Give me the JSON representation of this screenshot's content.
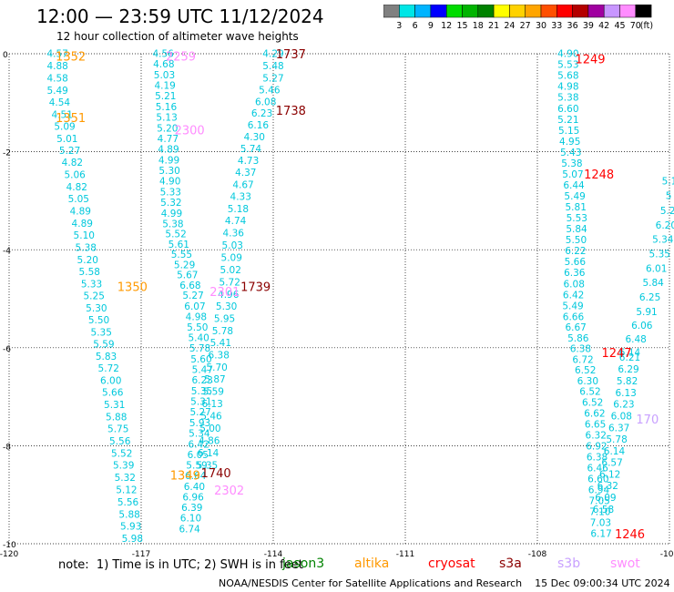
{
  "header": {
    "title": "12:00 — 23:59 UTC 11/12/2024",
    "subtitle": "12 hour collection of altimeter wave heights"
  },
  "colorbar": {
    "unit": "(ft)",
    "labels": [
      "3",
      "6",
      "9",
      "12",
      "15",
      "18",
      "21",
      "24",
      "27",
      "30",
      "33",
      "36",
      "39",
      "42",
      "45",
      "70"
    ],
    "colors": [
      "#808080",
      "#00e6e6",
      "#00b4ff",
      "#0000ff",
      "#00dc00",
      "#00b400",
      "#008200",
      "#ffff00",
      "#ffd200",
      "#ffa500",
      "#ff5000",
      "#ff0000",
      "#b40000",
      "#a000a0",
      "#c896ff",
      "#ff8cff",
      "#000000"
    ]
  },
  "axes": {
    "x_ticks": [
      "-120",
      "-117",
      "-114",
      "-111",
      "-108",
      "-105"
    ],
    "y_ticks": [
      "0",
      "-2",
      "-4",
      "-6",
      "-8",
      "-10"
    ]
  },
  "map_data": {
    "extent": {
      "lon": [
        -120,
        -105
      ],
      "lat": [
        -10,
        0
      ]
    },
    "value_color": "#00c8dc",
    "tracks": [
      {
        "values": [
          "4.57",
          "4.88",
          "4.58",
          "5.49",
          "4.54",
          "4.51",
          "5.09",
          "5.01",
          "5.27",
          "4.82",
          "5.06",
          "4.82",
          "5.05",
          "4.89",
          "4.89",
          "5.10",
          "5.38",
          "5.20",
          "5.58",
          "5.33",
          "5.25",
          "5.30",
          "5.50",
          "5.35",
          "5.59",
          "5.83",
          "5.72",
          "6.00",
          "5.66",
          "5.31",
          "5.88",
          "5.75",
          "5.56",
          "5.52",
          "5.39",
          "5.32",
          "5.12",
          "5.56",
          "5.88",
          "5.93",
          "5.98"
        ]
      },
      {
        "values": [
          "4.56",
          "4.68",
          "5.03",
          "4.19",
          "5.21",
          "5.16",
          "5.13",
          "5.20",
          "4.77",
          "4.89",
          "4.99",
          "5.30",
          "4.90",
          "5.33",
          "5.32",
          "4.99",
          "5.38",
          "5.52",
          "5.61",
          "5.55",
          "5.29",
          "5.67",
          "6.68",
          "5.27",
          "6.07",
          "4.98",
          "5.50",
          "5.40",
          "5.78",
          "5.60",
          "5.47",
          "6.23",
          "5.35",
          "5.31",
          "5.27",
          "5.93",
          "5.34",
          "6.42",
          "6.05",
          "5.59",
          "6.64",
          "6.40",
          "6.96",
          "6.39",
          "6.10",
          "6.74"
        ]
      },
      {
        "values": [
          "4.29",
          "5.48",
          "5.27",
          "5.46",
          "6.08",
          "6.23",
          "6.16",
          "4.30",
          "5.74",
          "4.73",
          "4.37",
          "4.67",
          "4.33",
          "5.18",
          "4.74",
          "4.36",
          "5.03",
          "5.09",
          "5.02",
          "5.72",
          "4.96",
          "5.30",
          "5.95",
          "5.78",
          "5.41",
          "6.38",
          "5.70",
          "5.87",
          "5.59",
          "6.13",
          "5.46",
          "5.00",
          "4.86",
          "6.14",
          "5.35"
        ]
      },
      {
        "values": [
          "4.90",
          "5.53",
          "5.68",
          "4.98",
          "5.38",
          "6.60",
          "5.21",
          "5.15",
          "4.95",
          "5.43",
          "5.38",
          "5.07",
          "6.44",
          "5.49",
          "5.81",
          "5.53",
          "5.84",
          "5.50",
          "6.22",
          "5.66",
          "6.36",
          "6.08",
          "6.42",
          "5.49",
          "6.66",
          "6.67",
          "5.86",
          "6.38",
          "6.72",
          "6.52",
          "6.30",
          "6.52",
          "6.52",
          "6.62",
          "6.65",
          "6.32",
          "6.92",
          "6.38",
          "6.46",
          "6.60",
          "6.94",
          "7.05",
          "7.10",
          "7.03",
          "6.17"
        ]
      },
      {
        "values": [
          "6.21",
          "6.29",
          "5.82",
          "6.13",
          "6.23",
          "6.08",
          "6.37",
          "5.78",
          "6.14",
          "6.57",
          "6.12",
          "6.32",
          "6.09",
          "6.58"
        ]
      },
      {
        "values": [
          "5.1",
          "5",
          "5.2",
          "6.20",
          "5.34",
          "5.35",
          "6.01",
          "5.84",
          "6.25",
          "5.91",
          "6.06",
          "6.48",
          "6.14"
        ]
      }
    ],
    "pass_labels": [
      {
        "text": "1352",
        "satellite": "altika",
        "lon": -118.6,
        "lat": -0.05
      },
      {
        "text": "1351",
        "satellite": "altika",
        "lon": -118.6,
        "lat": -1.3
      },
      {
        "text": "1350",
        "satellite": "altika",
        "lon": -117.2,
        "lat": -4.75
      },
      {
        "text": "1349",
        "satellite": "altika",
        "lon": -116.0,
        "lat": -8.6
      },
      {
        "text": "2259",
        "satellite": "swot",
        "lon": -116.1,
        "lat": -0.05
      },
      {
        "text": "2300",
        "satellite": "swot",
        "lon": -115.9,
        "lat": -1.55
      },
      {
        "text": "2301",
        "satellite": "swot",
        "lon": -115.1,
        "lat": -4.85
      },
      {
        "text": "2302",
        "satellite": "swot",
        "lon": -115.0,
        "lat": -8.9
      },
      {
        "text": "1737",
        "satellite": "s3a",
        "lon": -113.6,
        "lat": 0.0
      },
      {
        "text": "1738",
        "satellite": "s3a",
        "lon": -113.6,
        "lat": -1.15
      },
      {
        "text": "1739",
        "satellite": "s3a",
        "lon": -114.4,
        "lat": -4.75
      },
      {
        "text": "1740",
        "satellite": "s3a",
        "lon": -115.3,
        "lat": -8.55
      },
      {
        "text": "1249",
        "satellite": "cryosat",
        "lon": -106.8,
        "lat": -0.1
      },
      {
        "text": "1248",
        "satellite": "cryosat",
        "lon": -106.6,
        "lat": -2.45
      },
      {
        "text": "1247",
        "satellite": "cryosat",
        "lon": -106.2,
        "lat": -6.1
      },
      {
        "text": "1246",
        "satellite": "cryosat",
        "lon": -105.9,
        "lat": -9.8
      },
      {
        "text": "170",
        "satellite": "s3b",
        "lon": -105.5,
        "lat": -7.45
      }
    ]
  },
  "footer": {
    "note": "note:  1) Time is in UTC; 2) SWH is in feet",
    "satellites": [
      {
        "name": "jason3",
        "color": "#008200"
      },
      {
        "name": "altika",
        "color": "#ff9900"
      },
      {
        "name": "cryosat",
        "color": "#ff0000"
      },
      {
        "name": "s3a",
        "color": "#8b0000"
      },
      {
        "name": "s3b",
        "color": "#c8a0ff"
      },
      {
        "name": "swot",
        "color": "#ff8cff"
      }
    ],
    "credit": "NOAA/NESDIS Center for Satellite Applications and Research    15 Dec 09:00:34 UTC 2024"
  }
}
